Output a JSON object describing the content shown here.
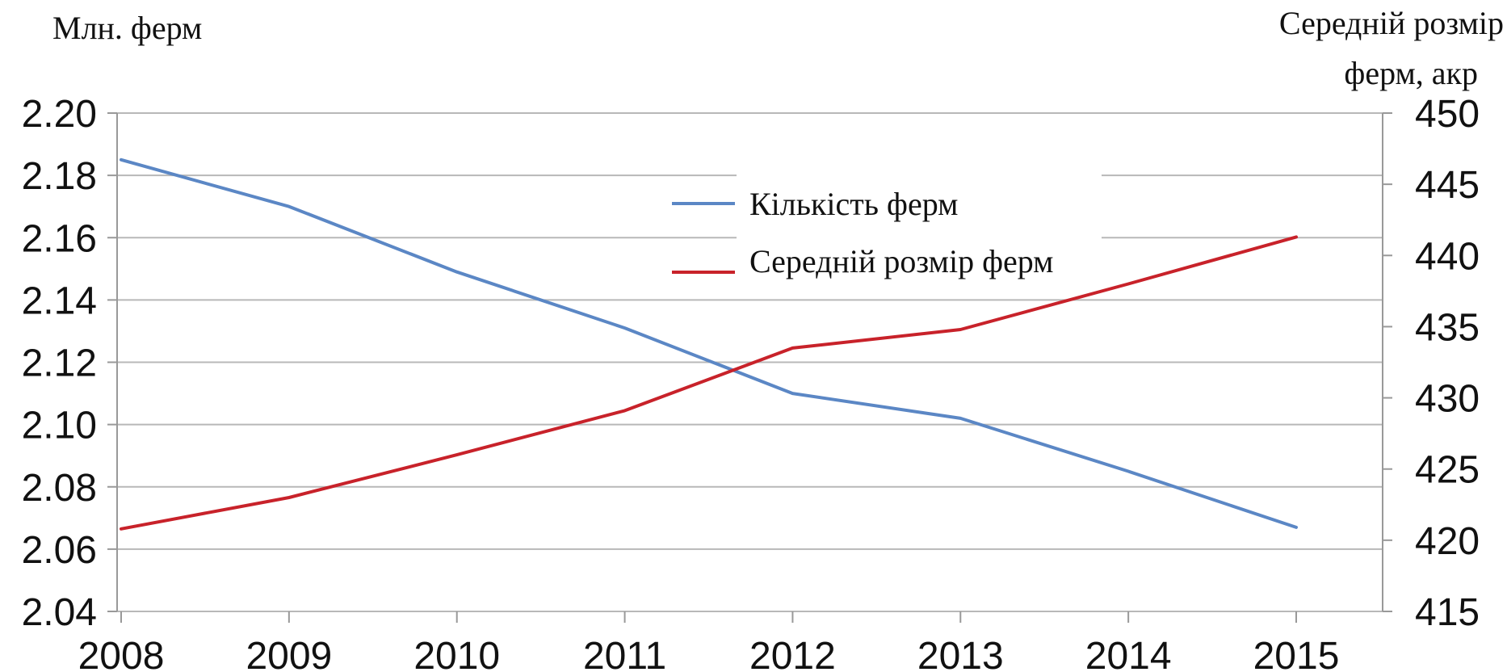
{
  "chart_data": {
    "type": "line",
    "categories": [
      "2008",
      "2009",
      "2010",
      "2011",
      "2012",
      "2013",
      "2014",
      "2015"
    ],
    "left_axis": {
      "label": "Млн. ферм",
      "ylim": [
        2.04,
        2.2
      ],
      "ticks": [
        "2.20",
        "2.18",
        "2.16",
        "2.14",
        "2.12",
        "2.10",
        "2.08",
        "2.06",
        "2.04"
      ]
    },
    "right_axis": {
      "label_lines": [
        "Середній розмір",
        "ферм, акр"
      ],
      "ylim": [
        415,
        450
      ],
      "ticks": [
        "450",
        "445",
        "440",
        "435",
        "430",
        "425",
        "420",
        "415"
      ]
    },
    "series": [
      {
        "name": "Кількість ферм",
        "axis": "left",
        "color": "#5b87c5",
        "values": [
          2.185,
          2.17,
          2.149,
          2.131,
          2.11,
          2.102,
          2.085,
          2.067
        ]
      },
      {
        "name": "Середній розмір ферм",
        "axis": "right",
        "color": "#c8222a",
        "values": [
          420.8,
          423.0,
          426.0,
          429.1,
          433.5,
          434.8,
          438.0,
          441.3
        ]
      }
    ],
    "grid": true,
    "legend_position": "top-center"
  }
}
